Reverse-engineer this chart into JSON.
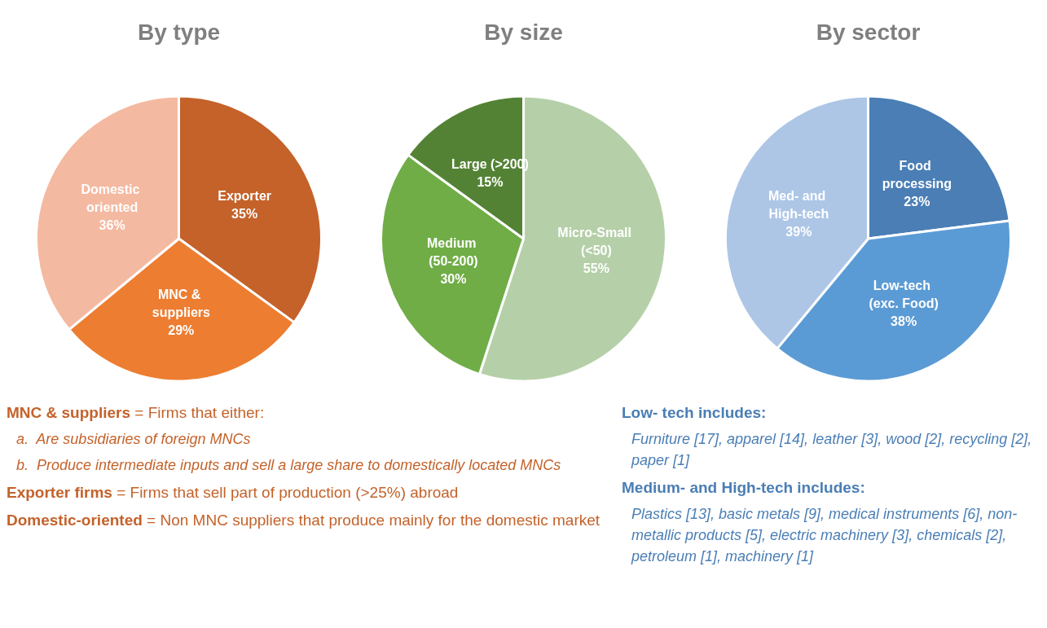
{
  "chart_data": [
    {
      "type": "pie",
      "title": "By type",
      "categories": [
        "Exporter",
        "MNC & suppliers",
        "Domestic oriented"
      ],
      "values": [
        35,
        29,
        36
      ],
      "value_labels": [
        "35%",
        "29%",
        "36%"
      ],
      "colors": [
        "#c4622a",
        "#ed7d31",
        "#f4b9a1"
      ],
      "legend": false,
      "annotations": [
        "MNC & suppliers = Firms that either:",
        "a.  Are subsidiaries of foreign MNCs",
        "b.  Produce intermediate inputs and sell a large share to domestically located MNCs",
        "Exporter firms = Firms that sell part of production (>25%) abroad",
        "Domestic-oriented = Non MNC suppliers that produce mainly for the domestic market"
      ]
    },
    {
      "type": "pie",
      "title": "By size",
      "categories": [
        "Micro-Small (<50)",
        "Medium (50-200)",
        "Large (>200)"
      ],
      "values": [
        55,
        30,
        15
      ],
      "value_labels": [
        "55%",
        "30%",
        "15%"
      ],
      "colors": [
        "#b5d0a8",
        "#70ad47",
        "#548235"
      ],
      "legend": false
    },
    {
      "type": "pie",
      "title": "By sector",
      "categories": [
        "Food processing",
        "Low-tech (exc. Food)",
        "Med- and High-tech"
      ],
      "values": [
        23,
        38,
        39
      ],
      "value_labels": [
        "23%",
        "38%",
        "39%"
      ],
      "colors": [
        "#4a7eb5",
        "#5b9bd5",
        "#adc6e6"
      ],
      "legend": false,
      "annotations": [
        "Low- tech includes:",
        "Furniture [17], apparel [14], leather [3], wood [2], recycling [2], paper [1]",
        "Medium- and High-tech includes:",
        "Plastics [13], basic metals [9], medical instruments [6], non-metallic products [5], electric machinery [3], chemicals [2], petroleum [1], machinery [1]"
      ]
    }
  ]
}
